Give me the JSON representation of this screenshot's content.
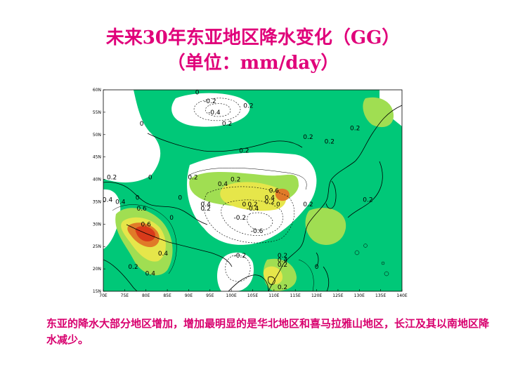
{
  "title": {
    "line1": "未来30年东亚地区降水变化（GG）",
    "line2": "（单位：mm/day）"
  },
  "map": {
    "lat_labels": [
      "60N",
      "55N",
      "50N",
      "45N",
      "40N",
      "35N",
      "30N",
      "25N",
      "20N",
      "15N"
    ],
    "lon_labels": [
      "70E",
      "75E",
      "80E",
      "85E",
      "90E",
      "95E",
      "100E",
      "105E",
      "110E",
      "115E",
      "120E",
      "125E",
      "130E",
      "135E",
      "140E"
    ],
    "contour_labels": [
      {
        "text": "0",
        "lon": 92,
        "lat": 59
      },
      {
        "text": "-0.2",
        "lon": 95,
        "lat": 57
      },
      {
        "text": "-0.4",
        "lon": 96,
        "lat": 54.5
      },
      {
        "text": "0.2",
        "lon": 104,
        "lat": 56
      },
      {
        "text": "0",
        "lon": 79,
        "lat": 52
      },
      {
        "text": "0.2",
        "lon": 99,
        "lat": 52
      },
      {
        "text": "0.2",
        "lon": 129,
        "lat": 51
      },
      {
        "text": "0.2",
        "lon": 118,
        "lat": 49
      },
      {
        "text": "0.2",
        "lon": 123,
        "lat": 48
      },
      {
        "text": "0.2",
        "lon": 103,
        "lat": 46
      },
      {
        "text": "0.2",
        "lon": 72,
        "lat": 40
      },
      {
        "text": "0",
        "lon": 81,
        "lat": 40
      },
      {
        "text": "0.2",
        "lon": 91,
        "lat": 40
      },
      {
        "text": "0.2",
        "lon": 101,
        "lat": 39.5
      },
      {
        "text": "0.4",
        "lon": 98,
        "lat": 38.5
      },
      {
        "text": "0.6",
        "lon": 110,
        "lat": 37
      },
      {
        "text": "0.4",
        "lon": 109,
        "lat": 35.5
      },
      {
        "text": "0.2",
        "lon": 109,
        "lat": 34.5
      },
      {
        "text": "0.2",
        "lon": 132,
        "lat": 35
      },
      {
        "text": "0.4",
        "lon": 71,
        "lat": 35
      },
      {
        "text": "0",
        "lon": 78,
        "lat": 35.5
      },
      {
        "text": "0.4",
        "lon": 74,
        "lat": 34.5
      },
      {
        "text": "0",
        "lon": 88,
        "lat": 35.5
      },
      {
        "text": "0.4",
        "lon": 94,
        "lat": 34
      },
      {
        "text": "0.2",
        "lon": 94,
        "lat": 33
      },
      {
        "text": "0",
        "lon": 103,
        "lat": 34
      },
      {
        "text": "0.2",
        "lon": 105,
        "lat": 34
      },
      {
        "text": "-0.4",
        "lon": 105,
        "lat": 33
      },
      {
        "text": "0",
        "lon": 111,
        "lat": 34
      },
      {
        "text": "0.2",
        "lon": 118,
        "lat": 34
      },
      {
        "text": "0.6",
        "lon": 79,
        "lat": 33
      },
      {
        "text": "0.6",
        "lon": 80,
        "lat": 29.5
      },
      {
        "text": "0",
        "lon": 86,
        "lat": 31
      },
      {
        "text": "-0.2",
        "lon": 102,
        "lat": 31
      },
      {
        "text": "-0.6",
        "lon": 106,
        "lat": 28
      },
      {
        "text": "0.4",
        "lon": 84,
        "lat": 23
      },
      {
        "text": "-0.2",
        "lon": 102,
        "lat": 22.5
      },
      {
        "text": "0.2",
        "lon": 112,
        "lat": 22.5
      },
      {
        "text": "0.4",
        "lon": 112,
        "lat": 21.5
      },
      {
        "text": "0.2",
        "lon": 112,
        "lat": 20.5
      },
      {
        "text": "0",
        "lon": 120,
        "lat": 20
      },
      {
        "text": "0.2",
        "lon": 77,
        "lat": 20
      },
      {
        "text": "0.4",
        "lon": 81,
        "lat": 18.5
      },
      {
        "text": "0.2",
        "lon": 112,
        "lat": 15.5
      }
    ]
  },
  "caption": "东亚的降水大部分地区增加，增加最明显的是华北地区和喜马拉雅山地区，长江及其以南地区降水减少。",
  "colors": {
    "title": "#e0007a",
    "green": "#00c878",
    "light_green": "#a0de52",
    "yellow": "#e6e64a",
    "orange": "#e07a28",
    "red": "#d83a1a"
  }
}
